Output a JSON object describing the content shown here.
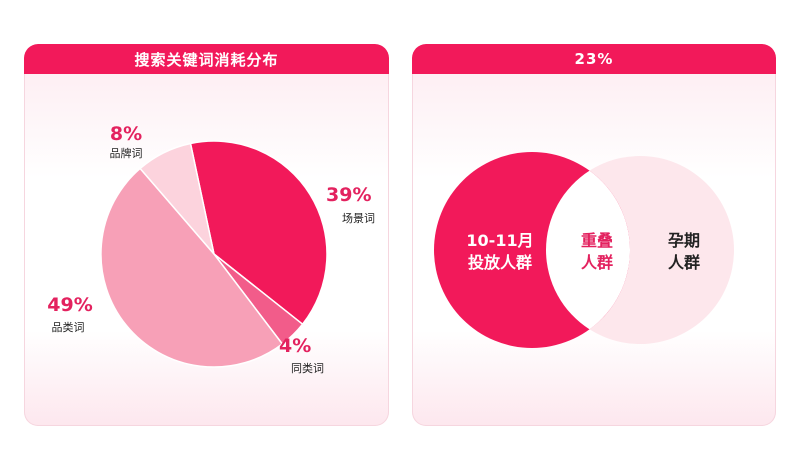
{
  "colors": {
    "header": "#f2195a",
    "slice_scene": "#f2195a",
    "slice_category": "#f7a0b7",
    "slice_similar": "#f25c8a",
    "slice_brand": "#fcd3dd",
    "venn_left": "#f2195a",
    "venn_right": "#fde7ec",
    "venn_overlap": "#ffffff",
    "label_accent": "#e3225f"
  },
  "chart_data": [
    {
      "type": "pie",
      "title": "搜索关键词消耗分布",
      "slices": [
        {
          "key": "scene",
          "label": "场景词",
          "value": 39,
          "display": "39%"
        },
        {
          "key": "similar",
          "label": "同类词",
          "value": 4,
          "display": "4%"
        },
        {
          "key": "category",
          "label": "品类词",
          "value": 49,
          "display": "49%"
        },
        {
          "key": "brand",
          "label": "品牌词",
          "value": 8,
          "display": "8%"
        }
      ]
    },
    {
      "type": "venn",
      "title": "23%",
      "sets": [
        {
          "key": "left",
          "label_lines": [
            "10-11月",
            "投放人群"
          ]
        },
        {
          "key": "right",
          "label_lines": [
            "孕期",
            "人群"
          ]
        }
      ],
      "overlap": {
        "label_lines": [
          "重叠",
          "人群"
        ]
      }
    }
  ]
}
